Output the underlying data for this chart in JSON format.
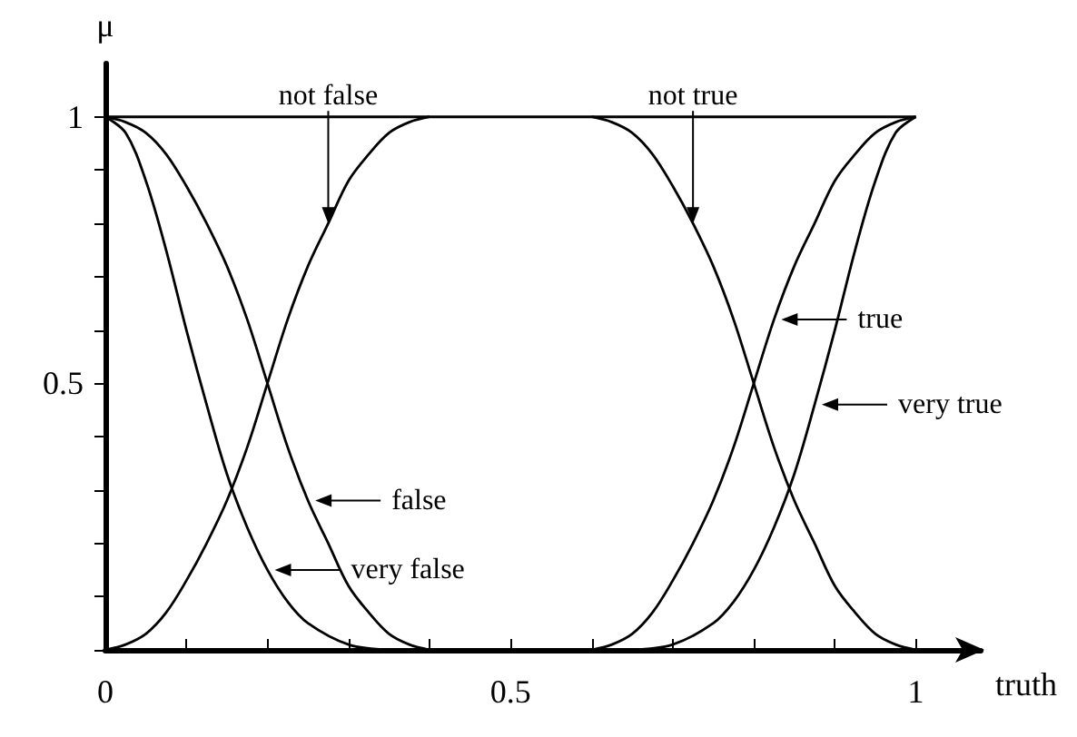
{
  "chart_data": {
    "type": "line",
    "xlabel": "truth",
    "ylabel": "μ",
    "xlim": [
      0,
      1.08
    ],
    "ylim": [
      0,
      1.1
    ],
    "xticks": [
      0,
      {
        "value": 0.1,
        "label": null
      },
      {
        "value": 0.2,
        "label": null
      },
      {
        "value": 0.3,
        "label": null
      },
      {
        "value": 0.4,
        "label": null
      },
      0.5,
      {
        "value": 0.6,
        "label": null
      },
      {
        "value": 0.7,
        "label": null
      },
      {
        "value": 0.8,
        "label": null
      },
      {
        "value": 0.9,
        "label": null
      },
      1
    ],
    "yticks": [
      {
        "value": 0,
        "label": null
      },
      {
        "value": 0.1,
        "label": null
      },
      {
        "value": 0.2,
        "label": null
      },
      {
        "value": 0.3,
        "label": null
      },
      {
        "value": 0.4,
        "label": null
      },
      0.5,
      {
        "value": 0.6,
        "label": null
      },
      {
        "value": 0.7,
        "label": null
      },
      {
        "value": 0.8,
        "label": null
      },
      {
        "value": 0.9,
        "label": null
      },
      1
    ],
    "marker": "none",
    "line_style": "solid",
    "series": [
      {
        "color": "#000000",
        "x": [
          0,
          1
        ],
        "values": [
          1,
          1
        ]
      },
      {
        "color": "#000000",
        "x": [
          0,
          0.025,
          0.05,
          0.075,
          0.1,
          0.125,
          0.15,
          0.175,
          0.2,
          0.225,
          0.25,
          0.275,
          0.3,
          0.325,
          0.35,
          0.375,
          0.4
        ],
        "values": [
          1,
          0.99,
          0.97,
          0.93,
          0.87,
          0.8,
          0.72,
          0.62,
          0.5,
          0.38,
          0.28,
          0.2,
          0.12,
          0.07,
          0.03,
          0.01,
          0
        ]
      },
      {
        "color": "#000000",
        "x": [
          0,
          0.025,
          0.05,
          0.075,
          0.1,
          0.125,
          0.15,
          0.175,
          0.2,
          0.225,
          0.25,
          0.3,
          0.35
        ],
        "values": [
          1,
          0.97,
          0.88,
          0.75,
          0.6,
          0.46,
          0.33,
          0.23,
          0.15,
          0.09,
          0.05,
          0.01,
          0
        ]
      },
      {
        "color": "#000000",
        "x": [
          0,
          0.025,
          0.05,
          0.075,
          0.1,
          0.125,
          0.15,
          0.175,
          0.2,
          0.225,
          0.25,
          0.275,
          0.3,
          0.325,
          0.35,
          0.375,
          0.4
        ],
        "values": [
          0,
          0.01,
          0.03,
          0.07,
          0.13,
          0.2,
          0.28,
          0.38,
          0.5,
          0.62,
          0.72,
          0.8,
          0.88,
          0.93,
          0.97,
          0.99,
          1
        ]
      },
      {
        "color": "#000000",
        "x": [
          0.6,
          0.625,
          0.65,
          0.675,
          0.7,
          0.725,
          0.75,
          0.775,
          0.8,
          0.825,
          0.85,
          0.875,
          0.9,
          0.925,
          0.95,
          0.975,
          1
        ],
        "values": [
          1,
          0.99,
          0.97,
          0.93,
          0.87,
          0.8,
          0.72,
          0.62,
          0.5,
          0.38,
          0.28,
          0.2,
          0.12,
          0.07,
          0.03,
          0.01,
          0
        ]
      },
      {
        "color": "#000000",
        "x": [
          0.6,
          0.625,
          0.65,
          0.675,
          0.7,
          0.725,
          0.75,
          0.775,
          0.8,
          0.825,
          0.85,
          0.875,
          0.9,
          0.925,
          0.95,
          0.975,
          1
        ],
        "values": [
          0,
          0.01,
          0.03,
          0.07,
          0.13,
          0.2,
          0.28,
          0.38,
          0.5,
          0.62,
          0.72,
          0.8,
          0.88,
          0.93,
          0.97,
          0.99,
          1
        ]
      },
      {
        "color": "#000000",
        "x": [
          0.65,
          0.7,
          0.75,
          0.775,
          0.8,
          0.825,
          0.85,
          0.875,
          0.9,
          0.925,
          0.95,
          0.975,
          1
        ],
        "values": [
          0,
          0.01,
          0.05,
          0.09,
          0.15,
          0.23,
          0.33,
          0.46,
          0.6,
          0.75,
          0.88,
          0.97,
          1
        ]
      }
    ],
    "annotations": [
      {
        "text": "not false",
        "x": 0.275,
        "y": 0.8
      },
      {
        "text": "not true",
        "x": 0.725,
        "y": 0.8
      },
      {
        "text": "true",
        "x": 0.825,
        "y": 0.62
      },
      {
        "text": "very true",
        "x": 0.875,
        "y": 0.46
      },
      {
        "text": "false",
        "x": 0.25,
        "y": 0.28
      },
      {
        "text": "very false",
        "x": 0.2,
        "y": 0.15
      }
    ]
  }
}
